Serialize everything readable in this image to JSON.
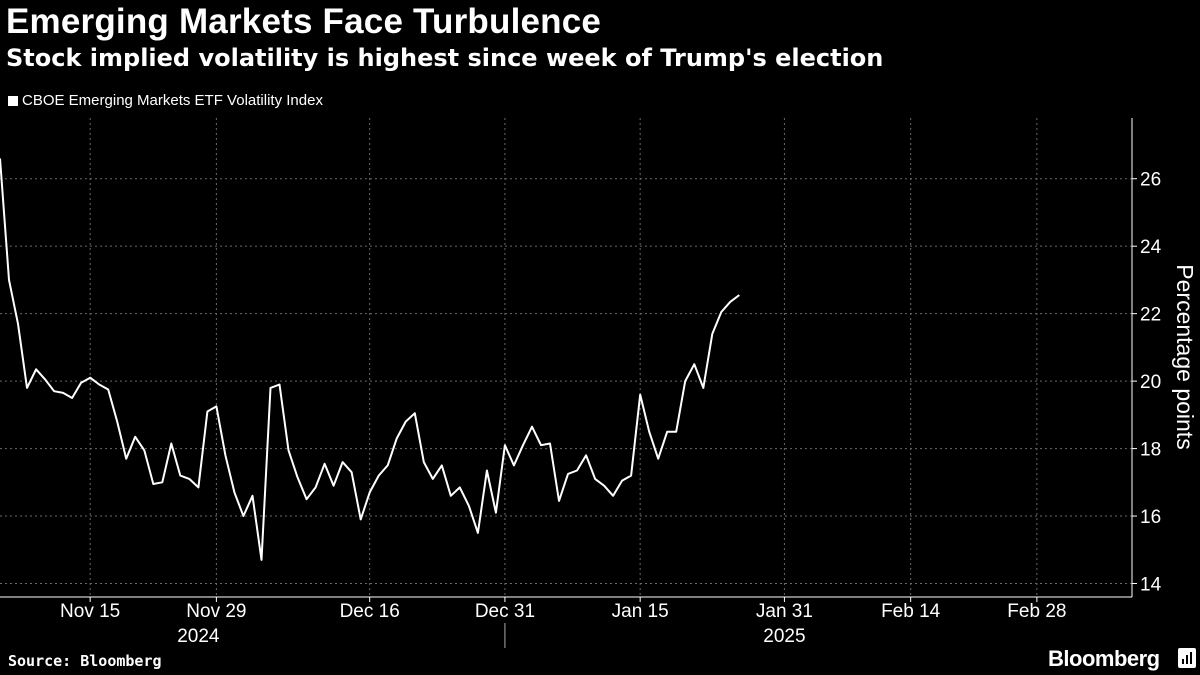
{
  "chart_data": {
    "type": "line",
    "title": "Emerging Markets Face Turbulence",
    "subtitle": "Stock implied volatility is highest since week of Trump's election",
    "ylabel": "Percentage points",
    "ylim": [
      13.6,
      27.8
    ],
    "yticks": [
      14,
      16,
      18,
      20,
      22,
      24,
      26
    ],
    "xlim": [
      "2024-11-05",
      "2025-03-07"
    ],
    "xticks": [
      {
        "date": "2024-11-15",
        "label": "Nov 15"
      },
      {
        "date": "2024-11-29",
        "label": "Nov 29"
      },
      {
        "date": "2024-12-16",
        "label": "Dec 16"
      },
      {
        "date": "2024-12-31",
        "label": "Dec 31"
      },
      {
        "date": "2025-01-15",
        "label": "Jan 15"
      },
      {
        "date": "2025-01-31",
        "label": "Jan 31"
      },
      {
        "date": "2025-02-14",
        "label": "Feb 14"
      },
      {
        "date": "2025-02-28",
        "label": "Feb 28"
      }
    ],
    "years": [
      {
        "label": "2024",
        "date": "2024-11-27"
      },
      {
        "label": "2025",
        "date": "2025-01-31"
      }
    ],
    "year_separator": "2024-12-31",
    "grid": true,
    "legend_position": "top-left",
    "series": [
      {
        "name": "CBOE Emerging Markets ETF Volatility Index",
        "color": "#ffffff",
        "points": [
          [
            "2024-11-05",
            26.6
          ],
          [
            "2024-11-06",
            23.0
          ],
          [
            "2024-11-07",
            21.7
          ],
          [
            "2024-11-08",
            19.8
          ],
          [
            "2024-11-09",
            20.35
          ],
          [
            "2024-11-10",
            20.05
          ],
          [
            "2024-11-11",
            19.7
          ],
          [
            "2024-11-12",
            19.65
          ],
          [
            "2024-11-13",
            19.5
          ],
          [
            "2024-11-14",
            19.95
          ],
          [
            "2024-11-15",
            20.1
          ],
          [
            "2024-11-16",
            19.9
          ],
          [
            "2024-11-17",
            19.75
          ],
          [
            "2024-11-18",
            18.8
          ],
          [
            "2024-11-19",
            17.7
          ],
          [
            "2024-11-20",
            18.35
          ],
          [
            "2024-11-21",
            17.95
          ],
          [
            "2024-11-22",
            16.95
          ],
          [
            "2024-11-23",
            17.0
          ],
          [
            "2024-11-24",
            18.15
          ],
          [
            "2024-11-25",
            17.2
          ],
          [
            "2024-11-26",
            17.1
          ],
          [
            "2024-11-27",
            16.85
          ],
          [
            "2024-11-28",
            19.1
          ],
          [
            "2024-11-29",
            19.25
          ],
          [
            "2024-11-30",
            17.8
          ],
          [
            "2024-12-01",
            16.7
          ],
          [
            "2024-12-02",
            16.0
          ],
          [
            "2024-12-03",
            16.6
          ],
          [
            "2024-12-04",
            14.7
          ],
          [
            "2024-12-05",
            19.8
          ],
          [
            "2024-12-06",
            19.9
          ],
          [
            "2024-12-07",
            17.95
          ],
          [
            "2024-12-08",
            17.15
          ],
          [
            "2024-12-09",
            16.5
          ],
          [
            "2024-12-10",
            16.85
          ],
          [
            "2024-12-11",
            17.55
          ],
          [
            "2024-12-12",
            16.9
          ],
          [
            "2024-12-13",
            17.6
          ],
          [
            "2024-12-14",
            17.3
          ],
          [
            "2024-12-15",
            15.9
          ],
          [
            "2024-12-16",
            16.7
          ],
          [
            "2024-12-17",
            17.2
          ],
          [
            "2024-12-18",
            17.5
          ],
          [
            "2024-12-19",
            18.3
          ],
          [
            "2024-12-20",
            18.8
          ],
          [
            "2024-12-21",
            19.05
          ],
          [
            "2024-12-22",
            17.6
          ],
          [
            "2024-12-23",
            17.1
          ],
          [
            "2024-12-24",
            17.5
          ],
          [
            "2024-12-25",
            16.6
          ],
          [
            "2024-12-26",
            16.85
          ],
          [
            "2024-12-27",
            16.3
          ],
          [
            "2024-12-28",
            15.5
          ],
          [
            "2024-12-29",
            17.35
          ],
          [
            "2024-12-30",
            16.1
          ],
          [
            "2024-12-31",
            18.1
          ],
          [
            "2025-01-01",
            17.5
          ],
          [
            "2025-01-02",
            18.1
          ],
          [
            "2025-01-03",
            18.65
          ],
          [
            "2025-01-04",
            18.1
          ],
          [
            "2025-01-05",
            18.15
          ],
          [
            "2025-01-06",
            16.45
          ],
          [
            "2025-01-07",
            17.25
          ],
          [
            "2025-01-08",
            17.35
          ],
          [
            "2025-01-09",
            17.8
          ],
          [
            "2025-01-10",
            17.1
          ],
          [
            "2025-01-11",
            16.9
          ],
          [
            "2025-01-12",
            16.6
          ],
          [
            "2025-01-13",
            17.05
          ],
          [
            "2025-01-14",
            17.2
          ],
          [
            "2025-01-15",
            19.6
          ],
          [
            "2025-01-16",
            18.5
          ],
          [
            "2025-01-17",
            17.7
          ],
          [
            "2025-01-18",
            18.5
          ],
          [
            "2025-01-19",
            18.5
          ],
          [
            "2025-01-20",
            20.0
          ],
          [
            "2025-01-21",
            20.5
          ],
          [
            "2025-01-22",
            19.8
          ],
          [
            "2025-01-23",
            21.4
          ],
          [
            "2025-01-24",
            22.05
          ],
          [
            "2025-01-25",
            22.35
          ],
          [
            "2025-01-26",
            22.55
          ]
        ]
      }
    ]
  },
  "source": "Source: Bloomberg",
  "brand": "Bloomberg"
}
